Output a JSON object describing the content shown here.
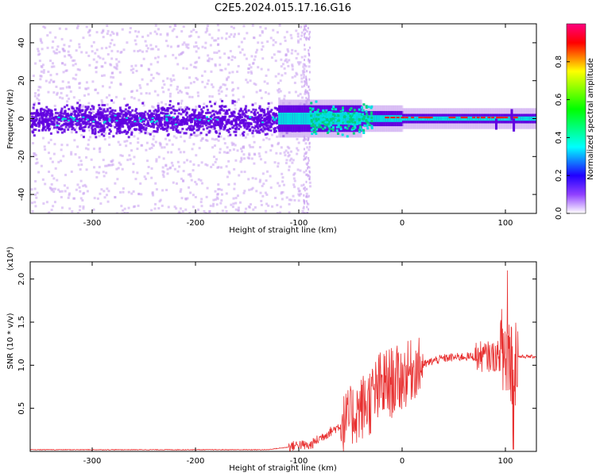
{
  "title": "C2E5.2024.015.17.16.G16",
  "chart_data": [
    {
      "type": "heatmap",
      "xlabel": "Height of straight line (km)",
      "ylabel": "Frequency (Hz)",
      "xlim": [
        -360,
        130
      ],
      "ylim": [
        -50,
        50
      ],
      "xticks": [
        -300,
        -200,
        -100,
        0,
        100
      ],
      "yticks": [
        -40,
        -20,
        0,
        20,
        40
      ],
      "colorbar": {
        "label": "Normalized spectral amplitude",
        "range": [
          0,
          1
        ],
        "ticks": [
          "0.0",
          "0.2",
          "0.4",
          "0.6",
          "0.8"
        ],
        "colors": [
          "#ffffff",
          "#7a00ff",
          "#0000ff",
          "#00ffff",
          "#00ff00",
          "#ffff00",
          "#ff0000",
          "#ff0080"
        ]
      },
      "colors": {
        "frame": "#000000",
        "weak": "#c8a0f0",
        "medium": "#6000e0",
        "strong": "#00e0e0",
        "peak": "#ff2020"
      }
    },
    {
      "type": "line",
      "xlabel": "Height of straight line (km)",
      "ylabel": "SNR (10 * v/v)",
      "scale_label": "(x10⁴)",
      "xlim": [
        -360,
        130
      ],
      "ylim": [
        0,
        2.2
      ],
      "xticks": [
        -300,
        -200,
        -100,
        0,
        100
      ],
      "yticks": [
        "0.5",
        "1.0",
        "1.5",
        "2.0"
      ],
      "series": [
        {
          "color": "#e83030",
          "x": [
            -360,
            -300,
            -200,
            -130,
            -110,
            -100,
            -90,
            -80,
            -60,
            -50,
            -40,
            -30,
            -20,
            -10,
            0,
            10,
            20,
            30,
            40,
            60,
            80,
            90,
            100,
            110,
            130
          ],
          "y": [
            0.02,
            0.02,
            0.02,
            0.02,
            0.05,
            0.08,
            0.06,
            0.15,
            0.3,
            0.4,
            0.5,
            0.6,
            0.75,
            0.8,
            0.85,
            0.95,
            1.0,
            1.05,
            1.08,
            1.1,
            1.1,
            1.1,
            1.12,
            1.1,
            1.1
          ]
        }
      ]
    }
  ]
}
